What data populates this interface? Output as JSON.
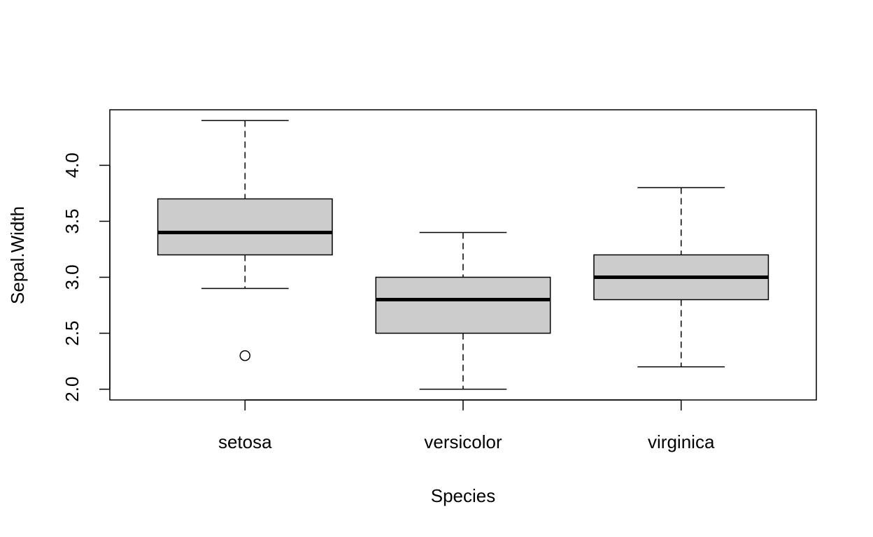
{
  "chart_data": {
    "type": "box",
    "title": "",
    "xlabel": "Species",
    "ylabel": "Sepal.Width",
    "categories": [
      "setosa",
      "versicolor",
      "virginica"
    ],
    "boxes": [
      {
        "name": "setosa",
        "whisker_low": 2.9,
        "q1": 3.2,
        "median": 3.4,
        "q3": 3.7,
        "whisker_high": 4.4,
        "outliers": [
          2.3
        ]
      },
      {
        "name": "versicolor",
        "whisker_low": 2.0,
        "q1": 2.5,
        "median": 2.8,
        "q3": 3.0,
        "whisker_high": 3.4,
        "outliers": []
      },
      {
        "name": "virginica",
        "whisker_low": 2.2,
        "q1": 2.8,
        "median": 3.0,
        "q3": 3.2,
        "whisker_high": 3.8,
        "outliers": []
      }
    ],
    "yticks": [
      "2.0",
      "2.5",
      "3.0",
      "3.5",
      "4.0"
    ],
    "ylim": [
      1.904,
      4.496
    ],
    "xlim": [
      0.38,
      3.62
    ],
    "grid": false,
    "box_fill": "#cccccc"
  }
}
